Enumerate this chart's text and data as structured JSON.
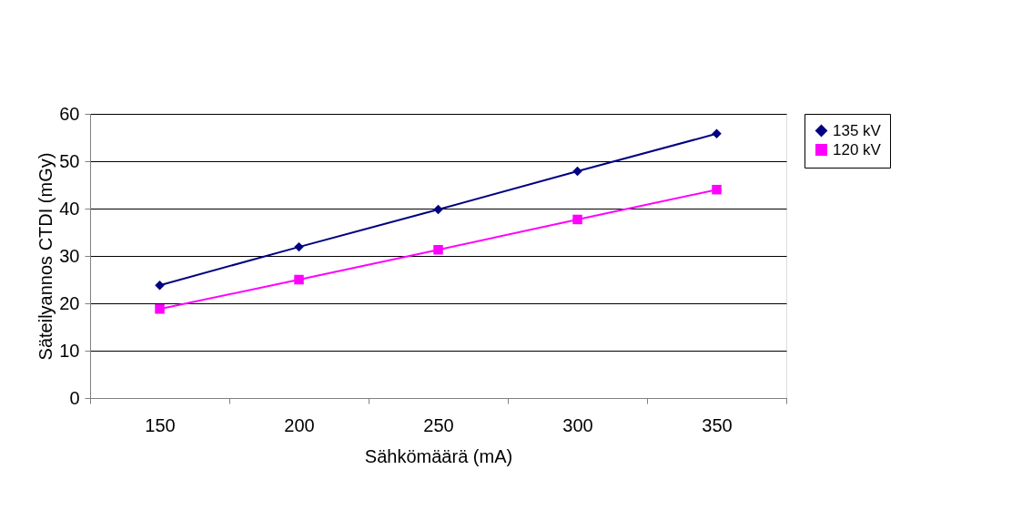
{
  "chart_data": {
    "type": "line",
    "xlabel": "Sähkömäärä (mA)",
    "ylabel": "Säteilyannos CTDI (mGy)",
    "categories": [
      "150",
      "200",
      "250",
      "300",
      "350"
    ],
    "series": [
      {
        "name": "135 kV",
        "color": "#000080",
        "marker": "diamond",
        "values": [
          23.8,
          31.9,
          39.8,
          47.9,
          55.8
        ]
      },
      {
        "name": "120 kV",
        "color": "#ff00ff",
        "marker": "square",
        "values": [
          18.8,
          25.0,
          31.3,
          37.7,
          44.0
        ]
      }
    ],
    "ylim": [
      0,
      60
    ],
    "yticks": [
      0,
      10,
      20,
      30,
      40,
      50,
      60
    ],
    "grid": "y",
    "legend": "right",
    "line_style": "solid"
  }
}
